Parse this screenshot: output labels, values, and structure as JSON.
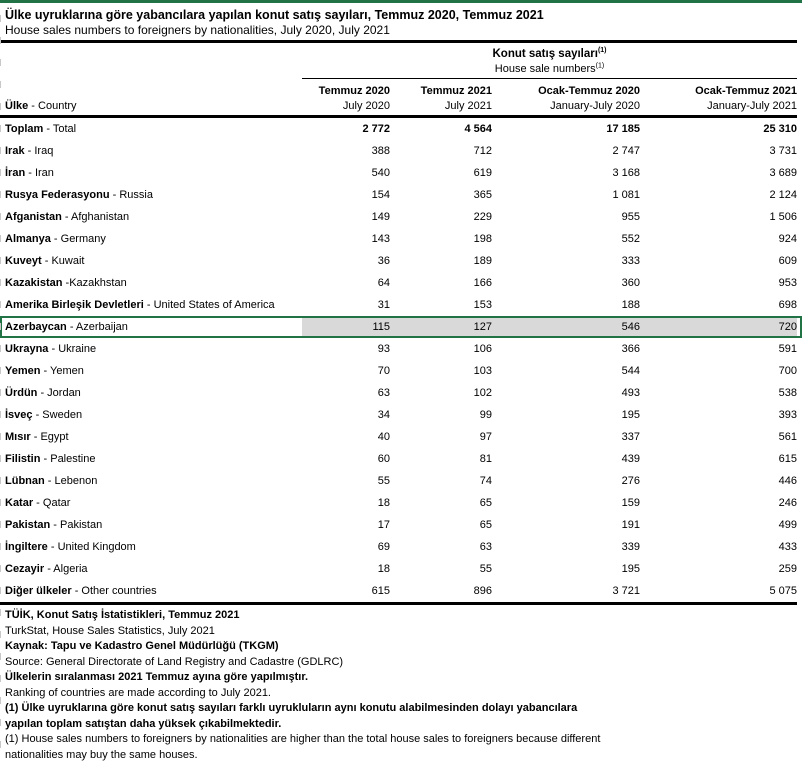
{
  "colors": {
    "accent_green": "#217346",
    "highlight_fill": "#D9D9D9",
    "rule_black": "#000000",
    "gridline_gray": "#C8C8C8"
  },
  "header": {
    "title_tr": "Ülke uyruklarına göre yabancılara yapılan konut satış sayıları, Temmuz 2020, Temmuz 2021",
    "title_en": "House sales numbers to foreigners by nationalities, July 2020, July 2021"
  },
  "table": {
    "group_header": {
      "tr": "Konut satış sayıları",
      "en": "House sale numbers",
      "footnote_marker": "(1)"
    },
    "row_header": {
      "tr": "Ülke",
      "rest": " - Country"
    },
    "columns": [
      {
        "tr": "Temmuz 2020",
        "en": "July 2020"
      },
      {
        "tr": "Temmuz 2021",
        "en": "July 2021"
      },
      {
        "tr": "Ocak-Temmuz 2020",
        "en": "January-July 2020"
      },
      {
        "tr": "Ocak-Temmuz 2021",
        "en": "January-July 2021"
      }
    ],
    "rows": [
      {
        "tr": "Toplam",
        "rest": " - Total",
        "values": [
          "2 772",
          "4 564",
          "17 185",
          "25 310"
        ],
        "bold": true,
        "highlight": false
      },
      {
        "tr": "Irak",
        "rest": " - Iraq",
        "values": [
          "388",
          "712",
          "2 747",
          "3 731"
        ],
        "bold": false,
        "highlight": false
      },
      {
        "tr": "İran",
        "rest": " - Iran",
        "values": [
          "540",
          "619",
          "3 168",
          "3 689"
        ],
        "bold": false,
        "highlight": false
      },
      {
        "tr": "Rusya Federasyonu",
        "rest": " - Russia",
        "values": [
          "154",
          "365",
          "1 081",
          "2 124"
        ],
        "bold": false,
        "highlight": false
      },
      {
        "tr": "Afganistan",
        "rest": " - Afghanistan",
        "values": [
          "149",
          "229",
          "955",
          "1 506"
        ],
        "bold": false,
        "highlight": false
      },
      {
        "tr": "Almanya",
        "rest": " - Germany",
        "values": [
          "143",
          "198",
          "552",
          "924"
        ],
        "bold": false,
        "highlight": false
      },
      {
        "tr": "Kuveyt",
        "rest": " - Kuwait",
        "values": [
          "36",
          "189",
          "333",
          "609"
        ],
        "bold": false,
        "highlight": false
      },
      {
        "tr": "Kazakistan",
        "rest": " -Kazakhstan",
        "values": [
          "64",
          "166",
          "360",
          "953"
        ],
        "bold": false,
        "highlight": false
      },
      {
        "tr": "Amerika Birleşik Devletleri",
        "rest": " - United States of America",
        "values": [
          "31",
          "153",
          "188",
          "698"
        ],
        "bold": false,
        "highlight": false
      },
      {
        "tr": "Azerbaycan",
        "rest": " - Azerbaijan",
        "values": [
          "115",
          "127",
          "546",
          "720"
        ],
        "bold": false,
        "highlight": true
      },
      {
        "tr": "Ukrayna",
        "rest": " - Ukraine",
        "values": [
          "93",
          "106",
          "366",
          "591"
        ],
        "bold": false,
        "highlight": false
      },
      {
        "tr": "Yemen",
        "rest": " - Yemen",
        "values": [
          "70",
          "103",
          "544",
          "700"
        ],
        "bold": false,
        "highlight": false
      },
      {
        "tr": "Ürdün",
        "rest": " - Jordan",
        "values": [
          "63",
          "102",
          "493",
          "538"
        ],
        "bold": false,
        "highlight": false
      },
      {
        "tr": "İsveç",
        "rest": " - Sweden",
        "values": [
          "34",
          "99",
          "195",
          "393"
        ],
        "bold": false,
        "highlight": false
      },
      {
        "tr": "Mısır",
        "rest": " - Egypt",
        "values": [
          "40",
          "97",
          "337",
          "561"
        ],
        "bold": false,
        "highlight": false
      },
      {
        "tr": "Filistin",
        "rest": " - Palestine",
        "values": [
          "60",
          "81",
          "439",
          "615"
        ],
        "bold": false,
        "highlight": false
      },
      {
        "tr": "Lübnan",
        "rest": " - Lebenon",
        "values": [
          "55",
          "74",
          "276",
          "446"
        ],
        "bold": false,
        "highlight": false
      },
      {
        "tr": "Katar",
        "rest": " - Qatar",
        "values": [
          "18",
          "65",
          "159",
          "246"
        ],
        "bold": false,
        "highlight": false
      },
      {
        "tr": "Pakistan",
        "rest": " - Pakistan",
        "values": [
          "17",
          "65",
          "191",
          "499"
        ],
        "bold": false,
        "highlight": false
      },
      {
        "tr": "İngiltere",
        "rest": " - United Kingdom",
        "values": [
          "69",
          "63",
          "339",
          "433"
        ],
        "bold": false,
        "highlight": false
      },
      {
        "tr": "Cezayir",
        "rest": " - Algeria",
        "values": [
          "18",
          "55",
          "195",
          "259"
        ],
        "bold": false,
        "highlight": false
      },
      {
        "tr": "Diğer ülkeler",
        "rest": " - Other countries",
        "values": [
          "615",
          "896",
          "3 721",
          "5 075"
        ],
        "bold": false,
        "highlight": false
      }
    ]
  },
  "footer": {
    "lines": [
      {
        "text": "TÜİK, Konut Satış İstatistikleri, Temmuz 2021",
        "bold": true
      },
      {
        "text": "TurkStat, House Sales Statistics, July 2021",
        "bold": false
      },
      {
        "text": "Kaynak: Tapu ve Kadastro Genel Müdürlüğü (TKGM)",
        "bold": true
      },
      {
        "text": "Source: General Directorate of Land Registry and Cadastre (GDLRC)",
        "bold": false
      },
      {
        "text": "Ülkelerin sıralanması 2021 Temmuz ayına göre yapılmıştır.",
        "bold": true
      },
      {
        "text": "Ranking of countries are made according to July 2021.",
        "bold": false
      },
      {
        "text": "(1) Ülke uyruklarına göre konut satış sayıları farklı uyrukluların aynı konutu alabilmesinden dolayı yabancılara",
        "bold": true
      },
      {
        "text": "yapılan toplam satıştan daha yüksek çıkabilmektedir.",
        "bold": true
      },
      {
        "text": "(1) House sales numbers to foreigners by nationalities are higher than the total house sales to foreigners because different",
        "bold": false
      },
      {
        "text": "nationalities may buy the same houses.",
        "bold": false
      }
    ]
  }
}
